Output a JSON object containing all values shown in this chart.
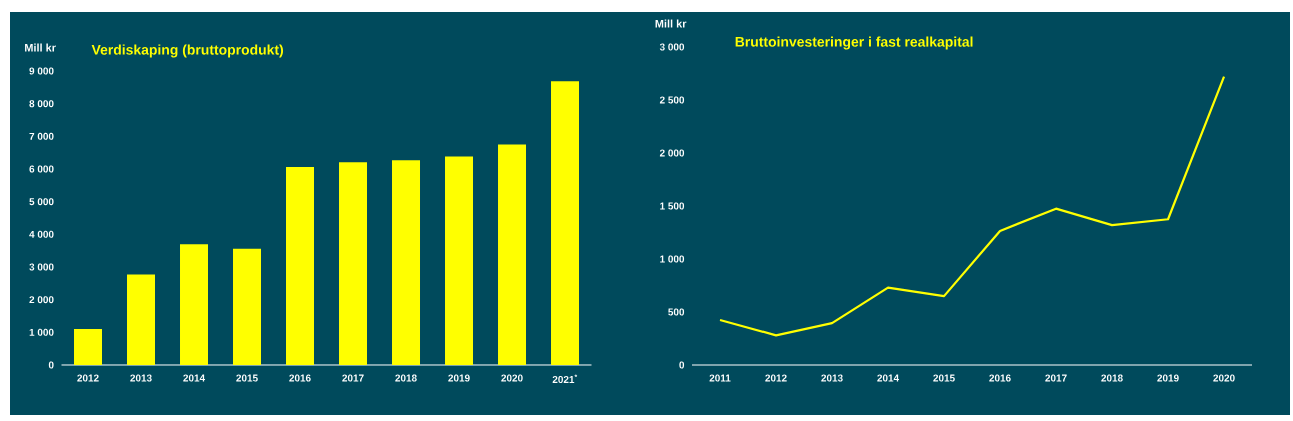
{
  "chart_data": [
    {
      "type": "bar",
      "title": "Verdiskaping (bruttoprodukt)",
      "ylabel": "Mill kr",
      "categories": [
        "2012",
        "2013",
        "2014",
        "2015",
        "2016",
        "2017",
        "2018",
        "2019",
        "2020",
        "2021$^{*}$"
      ],
      "values": [
        1100,
        2770,
        3700,
        3560,
        6060,
        6210,
        6270,
        6380,
        6750,
        8690
      ],
      "color": "#ffff00",
      "ylim": [
        0,
        9000
      ],
      "yticks": [
        0,
        {
          "value": 1000,
          "label": "1 000"
        },
        {
          "value": 2000,
          "label": "2 000"
        },
        {
          "value": 3000,
          "label": "3 000"
        },
        {
          "value": 4000,
          "label": "4 000"
        },
        {
          "value": 5000,
          "label": "5 000"
        },
        {
          "value": 6000,
          "label": "6 000"
        },
        {
          "value": 7000,
          "label": "7 000"
        },
        {
          "value": 8000,
          "label": "8 000"
        },
        {
          "value": 9000,
          "label": "9 000"
        }
      ]
    },
    {
      "type": "line",
      "title": "Bruttoinvesteringer i fast realkapital",
      "ylabel": "Mill kr",
      "categories": [
        "2011",
        "2012",
        "2013",
        "2014",
        "2015",
        "2016",
        "2017",
        "2018",
        "2019",
        "2020"
      ],
      "values": [
        425,
        280,
        395,
        730,
        650,
        1265,
        1475,
        1320,
        1375,
        2720
      ],
      "color": "#ffff00",
      "ylim": [
        0,
        3000
      ],
      "yticks": [
        0,
        500,
        {
          "value": 1000,
          "label": "1 000"
        },
        {
          "value": 1500,
          "label": "1 500"
        },
        {
          "value": 2000,
          "label": "2 000"
        },
        {
          "value": 2500,
          "label": "2 500"
        },
        {
          "value": 3000,
          "label": "3 000"
        }
      ]
    }
  ]
}
